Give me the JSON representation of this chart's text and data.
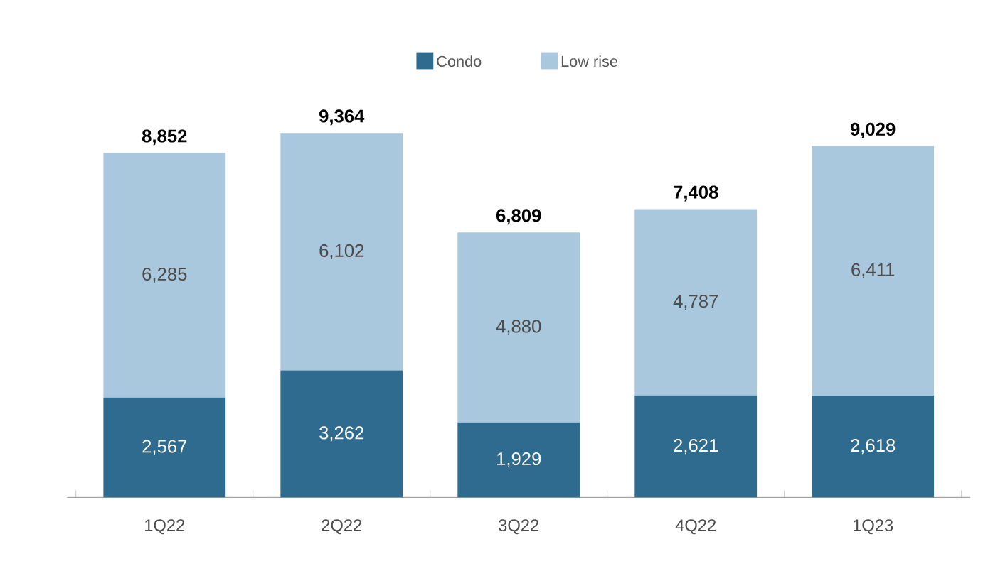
{
  "chart_data": {
    "type": "bar",
    "stacked": true,
    "categories": [
      "1Q22",
      "2Q22",
      "3Q22",
      "4Q22",
      "1Q23"
    ],
    "series": [
      {
        "name": "Condo",
        "color": "#2f6a8f",
        "values": [
          2567,
          3262,
          1929,
          2621,
          2618
        ],
        "value_labels": [
          "2,567",
          "3,262",
          "1,929",
          "2,621",
          "2,618"
        ]
      },
      {
        "name": "Low rise",
        "color": "#a9c8dd",
        "values": [
          6285,
          6102,
          4880,
          4787,
          6411
        ],
        "value_labels": [
          "6,285",
          "6,102",
          "4,880",
          "4,787",
          "6,411"
        ]
      }
    ],
    "totals": [
      "8,852",
      "9,364",
      "6,809",
      "7,408",
      "9,029"
    ],
    "legend": "top",
    "tick_labels": "x"
  }
}
